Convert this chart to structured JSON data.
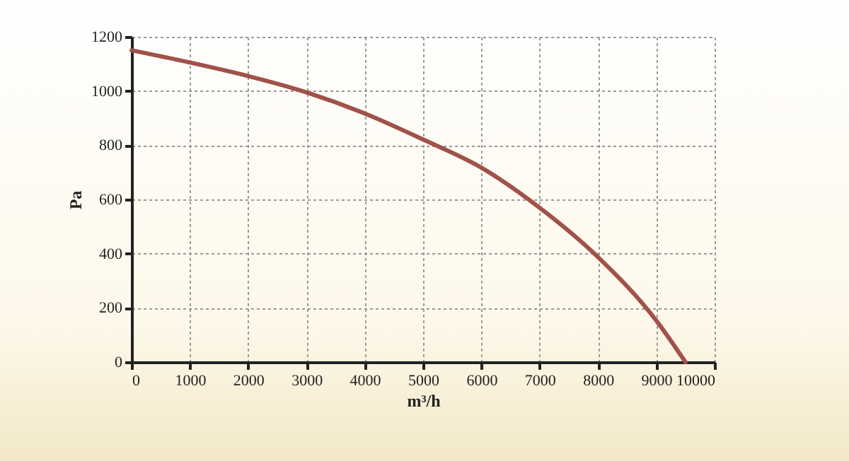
{
  "chart_data": {
    "type": "line",
    "xlabel": "m³/h",
    "ylabel": "Pa",
    "x": [
      0,
      1000,
      2000,
      3000,
      4000,
      5000,
      6000,
      7000,
      8000,
      9000,
      9500
    ],
    "series": [
      {
        "color": "#a0524a",
        "values": [
          1150,
          1105,
          1055,
          995,
          917,
          821,
          717,
          569,
          387,
          153,
          0
        ]
      }
    ],
    "xlim": [
      0,
      10000
    ],
    "xticks": [
      0,
      1000,
      2000,
      3000,
      4000,
      5000,
      6000,
      7000,
      8000,
      9000,
      10000
    ],
    "ylim": [
      0,
      1200
    ],
    "yticks": [
      0,
      200,
      400,
      600,
      800,
      1000,
      1200
    ],
    "grid": true,
    "marker": "none",
    "line_style": "solid"
  }
}
